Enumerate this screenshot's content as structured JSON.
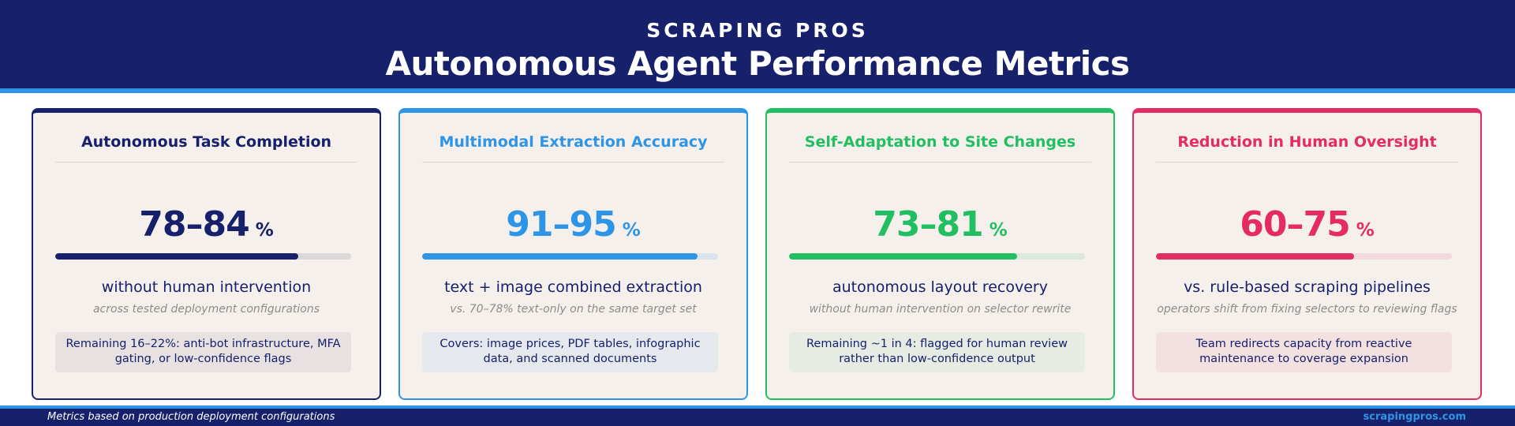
{
  "header": {
    "brand": "SCRAPING PROS",
    "title": "Autonomous Agent Performance Metrics"
  },
  "cards": [
    {
      "title": "Autonomous Task Completion",
      "value": "78–84",
      "unit": "%",
      "progress": 0.82,
      "description": "without human intervention",
      "subtext": "across tested deployment configurations",
      "note": "Remaining 16–22%: anti-bot infrastructure, MFA gating, or low-confidence flags",
      "accent": "#17206a",
      "track": "#dcd7d8",
      "note_bg": "#e7e2e1"
    },
    {
      "title": "Multimodal Extraction Accuracy",
      "value": "91–95",
      "unit": "%",
      "progress": 0.93,
      "description": "text + image combined extraction",
      "subtext": "vs. 70–78% text-only on the same target set",
      "note": "Covers: image prices, PDF tables, infographic data, and scanned documents",
      "accent": "#2e95e6",
      "track": "#dbe4ec",
      "note_bg": "#e5e8ec"
    },
    {
      "title": "Self-Adaptation to Site Changes",
      "value": "73–81",
      "unit": "%",
      "progress": 0.77,
      "description": "autonomous layout recovery",
      "subtext": "without human intervention on selector rewrite",
      "note": "Remaining ~1 in 4: flagged for human review rather than low-confidence output",
      "accent": "#22bf62",
      "track": "#dbe9dd",
      "note_bg": "#e6ece4"
    },
    {
      "title": "Reduction in Human Oversight",
      "value": "60–75",
      "unit": "%",
      "progress": 0.67,
      "description": "vs. rule-based scraping pipelines",
      "subtext": "operators shift from fixing selectors to reviewing flags",
      "note": "Team redirects capacity from reactive maintenance to coverage expansion",
      "accent": "#e42b63",
      "track": "#f1d9dd",
      "note_bg": "#f3e1e2"
    }
  ],
  "footer": {
    "left": "Metrics based on production deployment configurations",
    "right": "scrapingpros.com"
  }
}
